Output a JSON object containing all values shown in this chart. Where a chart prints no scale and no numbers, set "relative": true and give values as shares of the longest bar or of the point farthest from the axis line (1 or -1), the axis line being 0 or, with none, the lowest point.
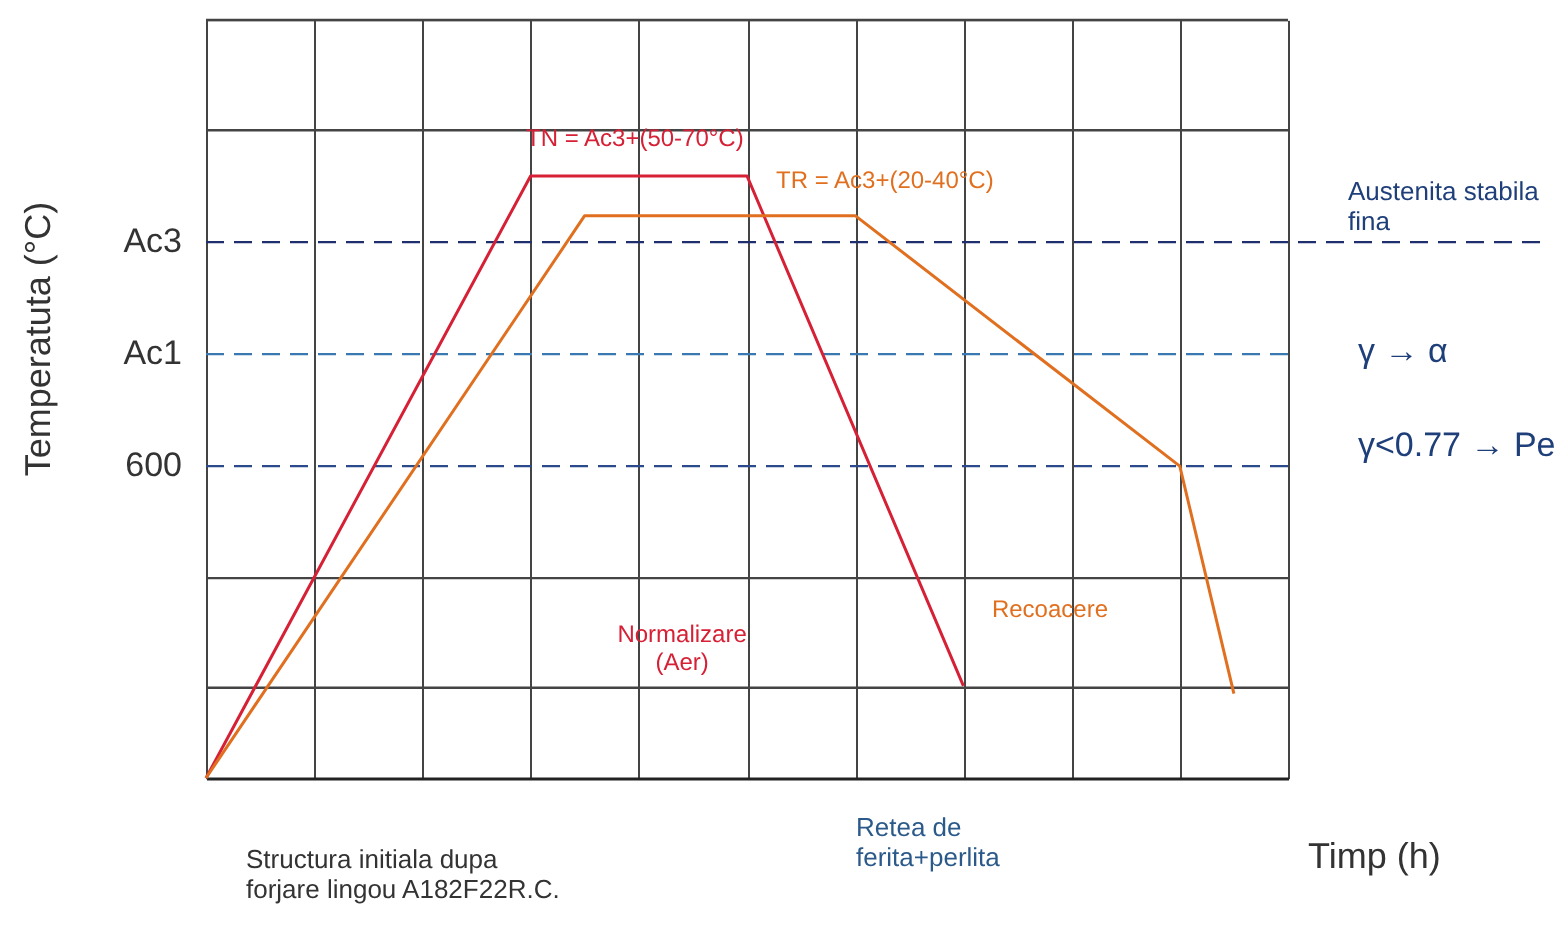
{
  "chart_data": {
    "type": "line",
    "relative": true,
    "ylabel": "Temperatuta (°C)",
    "xlabel": "Timp (h)",
    "categories": [
      null,
      null,
      null,
      null,
      null,
      null,
      null,
      null,
      null,
      null,
      null,
      null,
      null,
      null,
      null,
      null,
      null,
      null,
      null,
      null,
      null
    ],
    "grid": "x",
    "line_style": "solid",
    "marker": "none",
    "series": [
      {
        "name": "Normalizare (Aer)",
        "color": "#d62035",
        "values": [
          0,
          null,
          null,
          null,
          null,
          null,
          1,
          null,
          null,
          null,
          1,
          null,
          null,
          null,
          0.153,
          null,
          null,
          null,
          null,
          null,
          null
        ]
      },
      {
        "name": "Recoacere",
        "color": "#e07020",
        "values": [
          0,
          null,
          null,
          null,
          null,
          null,
          null,
          0.934,
          null,
          null,
          null,
          null,
          0.934,
          null,
          null,
          null,
          null,
          null,
          0.518,
          0.14,
          null
        ]
      }
    ],
    "ref_lines": [
      {
        "axis": "y",
        "value": 0.89,
        "label": "Ac3",
        "color": "#1f2f6e",
        "line_style": "dashed"
      },
      {
        "axis": "y",
        "value": 0.704,
        "label": "Ac1",
        "color": "#3a78b0",
        "line_style": "dashed"
      },
      {
        "axis": "y",
        "value": 0.518,
        "label": null,
        "color": "#2b4a8a",
        "line_style": "dashed"
      },
      {
        "axis": "y",
        "value": 0.15,
        "label": null,
        "color": "#444444",
        "line_style": "solid"
      },
      {
        "axis": "y",
        "value": 0.332,
        "label": null,
        "color": "#444444",
        "line_style": "solid"
      },
      {
        "axis": "y",
        "value": 1.076,
        "label": null,
        "color": "#444444",
        "line_style": "solid"
      },
      {
        "axis": "y",
        "value": 1.259,
        "label": null,
        "color": "#444444",
        "line_style": "solid"
      }
    ],
    "annotations": [
      "TN = Ac3+(50-70°C)",
      "TR = Ac3+(20-40°C)",
      "Austenita stabila fina",
      "γ → α",
      "γ<0.77 → Pe",
      "Retea de ferita+perlita",
      "Structura initiala dupa forjare lingou A182F22R.C.",
      "600"
    ]
  }
}
